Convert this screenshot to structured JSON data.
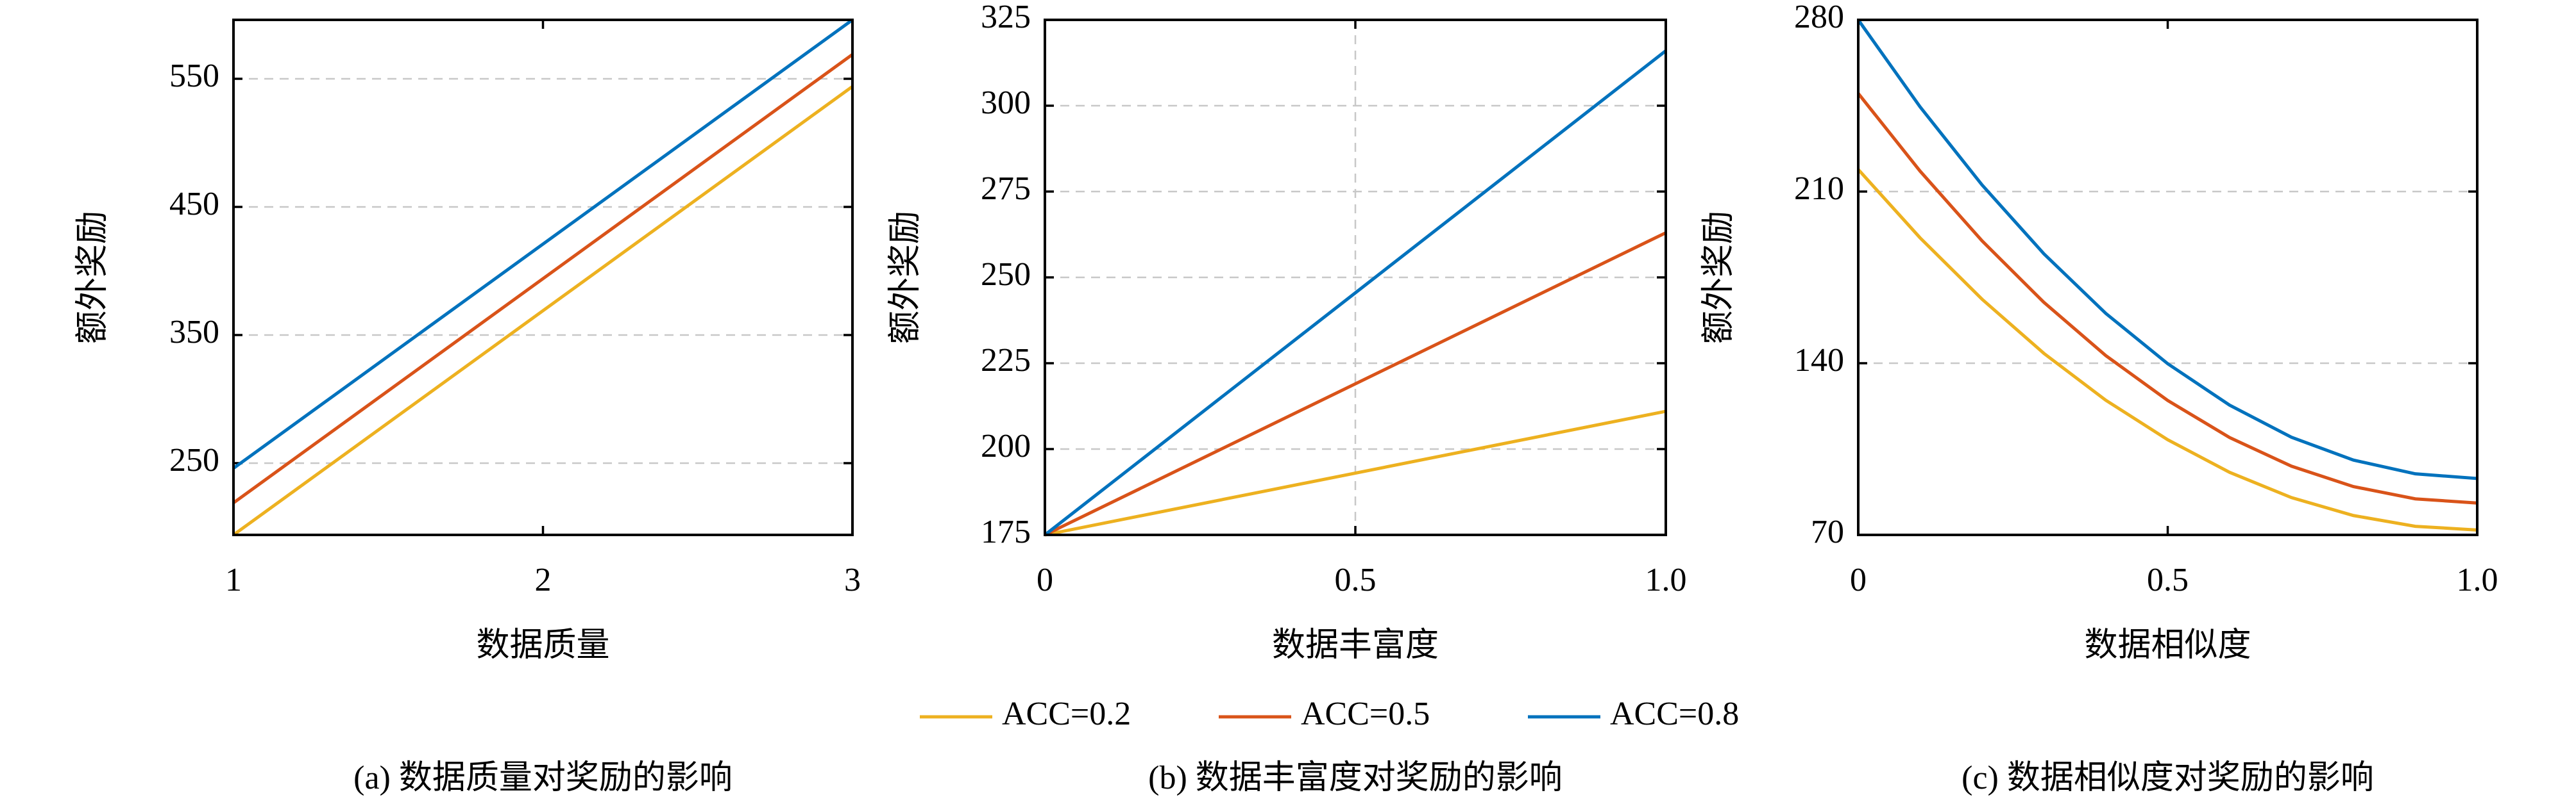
{
  "chart_data": [
    {
      "type": "line",
      "caption": "(a) 数据质量对奖励的影响",
      "xlabel": "数据质量",
      "ylabel": "额外奖励",
      "x": [
        1,
        2,
        3
      ],
      "xlim": [
        1,
        3
      ],
      "xticks": [
        1,
        2,
        3
      ],
      "ylim": [
        194,
        596
      ],
      "yticks": [
        250,
        350,
        450,
        550
      ],
      "grid": true,
      "xgrid": false,
      "series": [
        {
          "color": "#edb120",
          "values": [
            194,
            369,
            544
          ]
        },
        {
          "color": "#d95319",
          "values": [
            219,
            394,
            569
          ]
        },
        {
          "color": "#0072bd",
          "values": [
            246,
            421,
            596
          ]
        }
      ]
    },
    {
      "type": "line",
      "caption": "(b) 数据丰富度对奖励的影响",
      "xlabel": "数据丰富度",
      "ylabel": "额外奖励",
      "x": [
        0,
        1
      ],
      "xlim": [
        0,
        1
      ],
      "xticks": [
        0,
        0.5,
        {
          "value": 1,
          "label": "1.0"
        }
      ],
      "ylim": [
        175,
        325
      ],
      "yticks": [
        175,
        200,
        225,
        250,
        275,
        300,
        325
      ],
      "grid": true,
      "xgrid": true,
      "series": [
        {
          "color": "#edb120",
          "values": [
            175,
            211
          ]
        },
        {
          "color": "#d95319",
          "values": [
            175,
            263
          ]
        },
        {
          "color": "#0072bd",
          "values": [
            175,
            316
          ]
        }
      ]
    },
    {
      "type": "line",
      "caption": "(c) 数据相似度对奖励的影响",
      "xlabel": "数据相似度",
      "ylabel": "额外奖励",
      "x": [
        0,
        0.1,
        0.2,
        0.3,
        0.4,
        0.5,
        0.6,
        0.7,
        0.8,
        0.9,
        1
      ],
      "xlim": [
        0,
        1
      ],
      "xticks": [
        0,
        0.5,
        {
          "value": 1,
          "label": "1.0"
        }
      ],
      "ylim": [
        70,
        280
      ],
      "yticks": [
        70,
        140,
        210,
        280
      ],
      "grid": true,
      "xgrid": false,
      "series": [
        {
          "color": "#edb120",
          "values": [
            219,
            191.1,
            166.1,
            144.0,
            124.9,
            108.8,
            95.5,
            85.2,
            77.9,
            73.5,
            72
          ]
        },
        {
          "color": "#d95319",
          "values": [
            250,
            218.3,
            189.9,
            164.8,
            143.1,
            124.8,
            109.7,
            98.0,
            89.7,
            84.7,
            83
          ]
        },
        {
          "color": "#0072bd",
          "values": [
            280,
            244.5,
            212.7,
            184.6,
            160.3,
            139.8,
            122.9,
            109.8,
            100.5,
            94.9,
            93
          ]
        }
      ]
    }
  ],
  "legend": [
    {
      "name": "ACC=0.2",
      "color": "#edb120"
    },
    {
      "name": "ACC=0.5",
      "color": "#d95319"
    },
    {
      "name": "ACC=0.8",
      "color": "#0072bd"
    }
  ]
}
